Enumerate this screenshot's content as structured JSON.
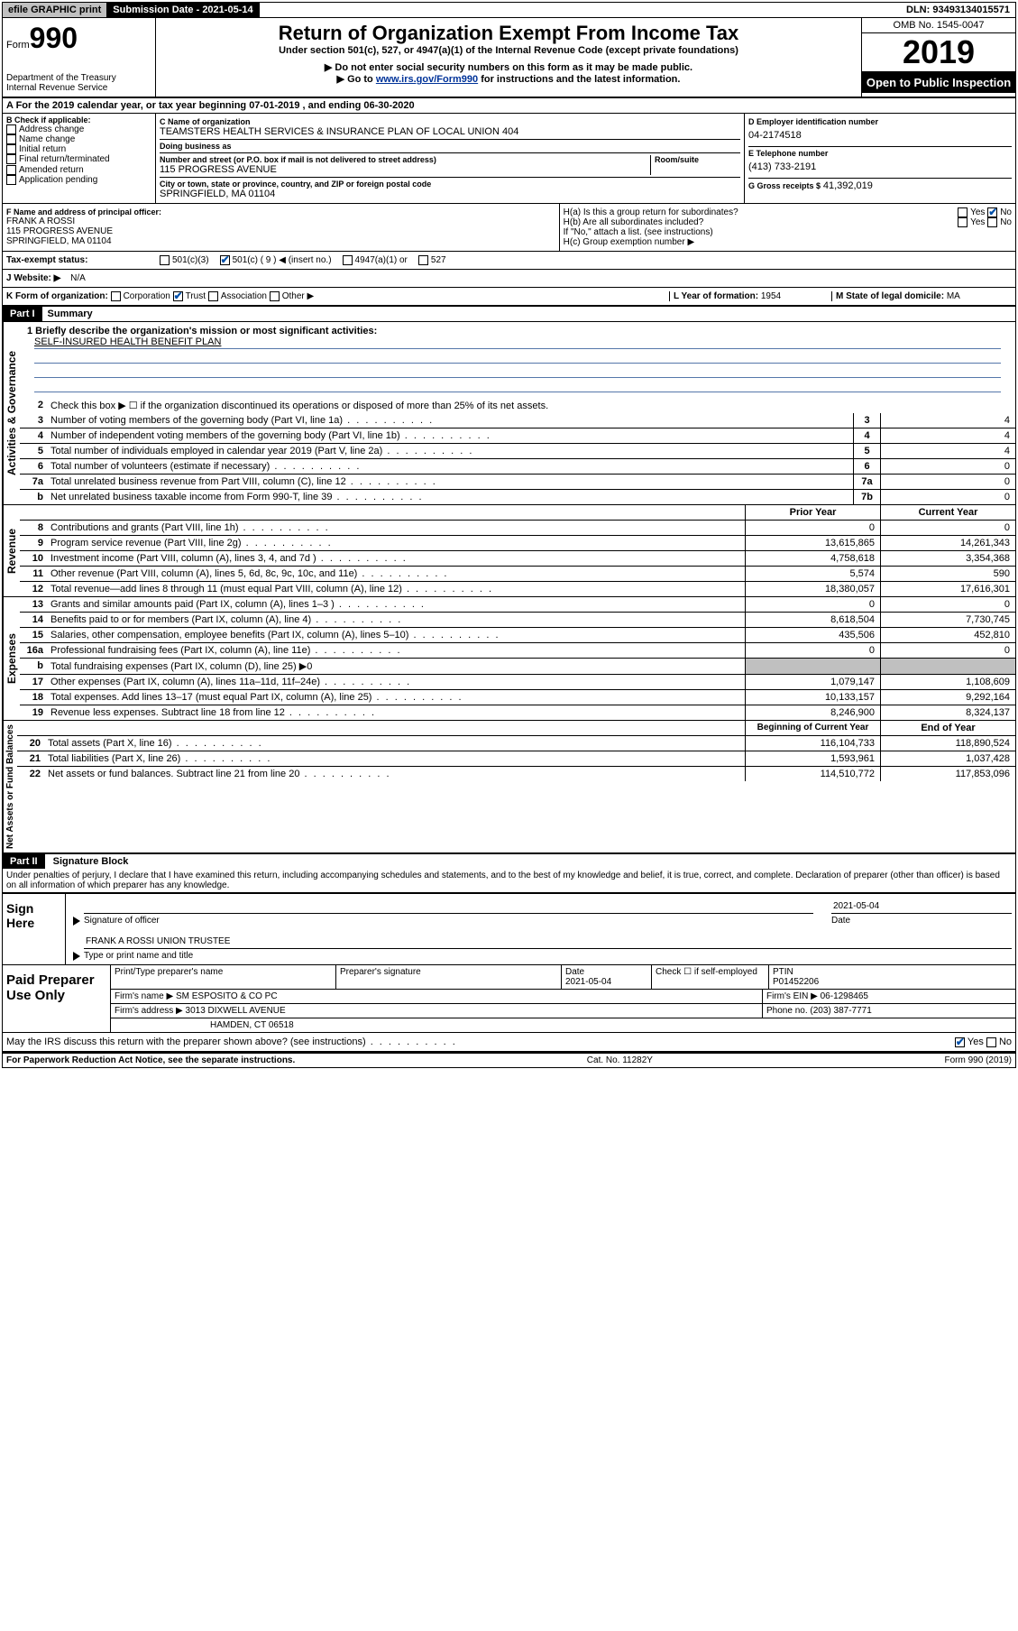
{
  "topbar": {
    "efile": "efile GRAPHIC print",
    "subdate_label": "Submission Date - 2021-05-14",
    "dln": "DLN: 93493134015571"
  },
  "header": {
    "form_prefix": "Form",
    "form_no": "990",
    "dept": "Department of the Treasury\nInternal Revenue Service",
    "title": "Return of Organization Exempt From Income Tax",
    "subtitle": "Under section 501(c), 527, or 4947(a)(1) of the Internal Revenue Code (except private foundations)",
    "instr1": "▶ Do not enter social security numbers on this form as it may be made public.",
    "instr2_pre": "▶ Go to ",
    "instr2_link": "www.irs.gov/Form990",
    "instr2_post": " for instructions and the latest information.",
    "omb": "OMB No. 1545-0047",
    "year": "2019",
    "open": "Open to Public Inspection"
  },
  "rowA": "A For the 2019 calendar year, or tax year beginning 07-01-2019   , and ending 06-30-2020",
  "B": {
    "label": "B Check if applicable:",
    "items": [
      "Address change",
      "Name change",
      "Initial return",
      "Final return/terminated",
      "Amended return",
      "Application pending"
    ]
  },
  "C": {
    "name_label": "C Name of organization",
    "name": "TEAMSTERS HEALTH SERVICES & INSURANCE PLAN OF LOCAL UNION 404",
    "dba_label": "Doing business as",
    "dba": "",
    "street_label": "Number and street (or P.O. box if mail is not delivered to street address)",
    "room_label": "Room/suite",
    "street": "115 PROGRESS AVENUE",
    "city_label": "City or town, state or province, country, and ZIP or foreign postal code",
    "city": "SPRINGFIELD, MA  01104"
  },
  "D": {
    "label": "D Employer identification number",
    "val": "04-2174518"
  },
  "E": {
    "label": "E Telephone number",
    "val": "(413) 733-2191"
  },
  "G": {
    "label": "G Gross receipts $",
    "val": "41,392,019"
  },
  "F": {
    "label": "F  Name and address of principal officer:",
    "name": "FRANK A ROSSI",
    "street": "115 PROGRESS AVENUE",
    "city": "SPRINGFIELD, MA  01104"
  },
  "H": {
    "a": "H(a)  Is this a group return for subordinates?",
    "b": "H(b)  Are all subordinates included?",
    "b_note": "If \"No,\" attach a list. (see instructions)",
    "c": "H(c)  Group exemption number ▶"
  },
  "I": {
    "label": "Tax-exempt status:",
    "opts": [
      "501(c)(3)",
      "501(c) ( 9 ) ◀ (insert no.)",
      "4947(a)(1) or",
      "527"
    ]
  },
  "J": {
    "label": "J   Website: ▶",
    "val": "N/A"
  },
  "K": {
    "label": "K Form of organization:",
    "opts": [
      "Corporation",
      "Trust",
      "Association",
      "Other ▶"
    ]
  },
  "L": {
    "label": "L Year of formation:",
    "val": "1954"
  },
  "M": {
    "label": "M State of legal domicile:",
    "val": "MA"
  },
  "part1": {
    "hdr": "Part I",
    "title": "Summary",
    "q1": "1  Briefly describe the organization's mission or most significant activities:",
    "mission": "SELF-INSURED HEALTH BENEFIT PLAN",
    "q2": "Check this box ▶ ☐  if the organization discontinued its operations or disposed of more than 25% of its net assets.",
    "lines_ag": [
      {
        "n": "3",
        "d": "Number of voting members of the governing body (Part VI, line 1a)",
        "box": "3",
        "v": "4"
      },
      {
        "n": "4",
        "d": "Number of independent voting members of the governing body (Part VI, line 1b)",
        "box": "4",
        "v": "4"
      },
      {
        "n": "5",
        "d": "Total number of individuals employed in calendar year 2019 (Part V, line 2a)",
        "box": "5",
        "v": "4"
      },
      {
        "n": "6",
        "d": "Total number of volunteers (estimate if necessary)",
        "box": "6",
        "v": "0"
      },
      {
        "n": "7a",
        "d": "Total unrelated business revenue from Part VIII, column (C), line 12",
        "box": "7a",
        "v": "0"
      },
      {
        "n": "b",
        "d": "Net unrelated business taxable income from Form 990-T, line 39",
        "box": "7b",
        "v": "0"
      }
    ],
    "col_prior": "Prior Year",
    "col_current": "Current Year",
    "revenue": [
      {
        "n": "8",
        "d": "Contributions and grants (Part VIII, line 1h)",
        "p": "0",
        "c": "0"
      },
      {
        "n": "9",
        "d": "Program service revenue (Part VIII, line 2g)",
        "p": "13,615,865",
        "c": "14,261,343"
      },
      {
        "n": "10",
        "d": "Investment income (Part VIII, column (A), lines 3, 4, and 7d )",
        "p": "4,758,618",
        "c": "3,354,368"
      },
      {
        "n": "11",
        "d": "Other revenue (Part VIII, column (A), lines 5, 6d, 8c, 9c, 10c, and 11e)",
        "p": "5,574",
        "c": "590"
      },
      {
        "n": "12",
        "d": "Total revenue—add lines 8 through 11 (must equal Part VIII, column (A), line 12)",
        "p": "18,380,057",
        "c": "17,616,301"
      }
    ],
    "expenses": [
      {
        "n": "13",
        "d": "Grants and similar amounts paid (Part IX, column (A), lines 1–3 )",
        "p": "0",
        "c": "0"
      },
      {
        "n": "14",
        "d": "Benefits paid to or for members (Part IX, column (A), line 4)",
        "p": "8,618,504",
        "c": "7,730,745"
      },
      {
        "n": "15",
        "d": "Salaries, other compensation, employee benefits (Part IX, column (A), lines 5–10)",
        "p": "435,506",
        "c": "452,810"
      },
      {
        "n": "16a",
        "d": "Professional fundraising fees (Part IX, column (A), line 11e)",
        "p": "0",
        "c": "0"
      },
      {
        "n": "b",
        "d": "Total fundraising expenses (Part IX, column (D), line 25) ▶0",
        "p": "",
        "c": "",
        "shade": true
      },
      {
        "n": "17",
        "d": "Other expenses (Part IX, column (A), lines 11a–11d, 11f–24e)",
        "p": "1,079,147",
        "c": "1,108,609"
      },
      {
        "n": "18",
        "d": "Total expenses. Add lines 13–17 (must equal Part IX, column (A), line 25)",
        "p": "10,133,157",
        "c": "9,292,164"
      },
      {
        "n": "19",
        "d": "Revenue less expenses. Subtract line 18 from line 12",
        "p": "8,246,900",
        "c": "8,324,137"
      }
    ],
    "col_begin": "Beginning of Current Year",
    "col_end": "End of Year",
    "net": [
      {
        "n": "20",
        "d": "Total assets (Part X, line 16)",
        "p": "116,104,733",
        "c": "118,890,524"
      },
      {
        "n": "21",
        "d": "Total liabilities (Part X, line 26)",
        "p": "1,593,961",
        "c": "1,037,428"
      },
      {
        "n": "22",
        "d": "Net assets or fund balances. Subtract line 21 from line 20",
        "p": "114,510,772",
        "c": "117,853,096"
      }
    ],
    "side_ag": "Activities & Governance",
    "side_rev": "Revenue",
    "side_exp": "Expenses",
    "side_net": "Net Assets or Fund Balances"
  },
  "part2": {
    "hdr": "Part II",
    "title": "Signature Block",
    "under": "Under penalties of perjury, I declare that I have examined this return, including accompanying schedules and statements, and to the best of my knowledge and belief, it is true, correct, and complete. Declaration of preparer (other than officer) is based on all information of which preparer has any knowledge."
  },
  "sign": {
    "side": "Sign Here",
    "sig_label": "Signature of officer",
    "date": "2021-05-04",
    "date_label": "Date",
    "name": "FRANK A ROSSI  UNION TRUSTEE",
    "name_label": "Type or print name and title"
  },
  "prep": {
    "side": "Paid Preparer Use Only",
    "h1": "Print/Type preparer's name",
    "h2": "Preparer's signature",
    "h3": "Date",
    "date": "2021-05-04",
    "h4": "Check ☐ if self-employed",
    "h5": "PTIN",
    "ptin": "P01452206",
    "firm_label": "Firm's name    ▶",
    "firm": "SM ESPOSITO & CO PC",
    "ein_label": "Firm's EIN ▶",
    "ein": "06-1298465",
    "addr_label": "Firm's address ▶",
    "addr1": "3013 DIXWELL AVENUE",
    "addr2": "HAMDEN, CT  06518",
    "phone_label": "Phone no.",
    "phone": "(203) 387-7771"
  },
  "discuss": "May the IRS discuss this return with the preparer shown above? (see instructions)",
  "footer": {
    "left": "For Paperwork Reduction Act Notice, see the separate instructions.",
    "mid": "Cat. No. 11282Y",
    "right": "Form 990 (2019)"
  },
  "yes": "Yes",
  "no": "No"
}
